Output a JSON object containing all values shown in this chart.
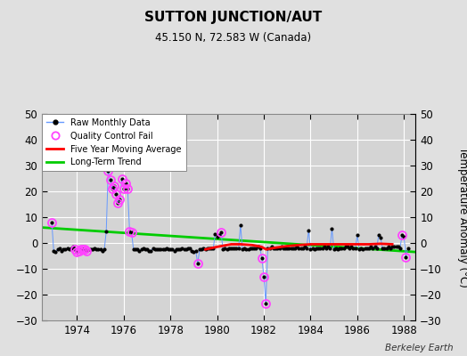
{
  "title": "SUTTON JUNCTION/AUT",
  "subtitle": "45.150 N, 72.583 W (Canada)",
  "ylabel_right": "Temperature Anomaly (°C)",
  "watermark": "Berkeley Earth",
  "xlim": [
    1972.5,
    1988.5
  ],
  "ylim": [
    -30,
    50
  ],
  "yticks": [
    -30,
    -20,
    -10,
    0,
    10,
    20,
    30,
    40,
    50
  ],
  "xticks": [
    1974,
    1976,
    1978,
    1980,
    1982,
    1984,
    1986,
    1988
  ],
  "bg_color": "#e0e0e0",
  "plot_bg_color": "#d4d4d4",
  "grid_color": "#ffffff",
  "raw_color": "#6699ff",
  "qc_color": "#ff44ff",
  "moving_avg_color": "red",
  "trend_color": "#00cc00",
  "raw_monthly_data": [
    [
      1972.917,
      8.0
    ],
    [
      1973.0,
      -3.0
    ],
    [
      1973.083,
      -3.5
    ],
    [
      1973.167,
      -2.5
    ],
    [
      1973.25,
      -2.0
    ],
    [
      1973.333,
      -3.0
    ],
    [
      1973.417,
      -2.5
    ],
    [
      1973.5,
      -2.5
    ],
    [
      1973.583,
      -2.0
    ],
    [
      1973.667,
      -2.5
    ],
    [
      1973.75,
      -2.0
    ],
    [
      1973.833,
      -1.5
    ],
    [
      1973.917,
      -2.5
    ],
    [
      1974.0,
      -3.5
    ],
    [
      1974.083,
      -3.0
    ],
    [
      1974.167,
      -2.5
    ],
    [
      1974.25,
      -2.5
    ],
    [
      1974.333,
      -2.5
    ],
    [
      1974.417,
      -3.0
    ],
    [
      1974.5,
      -2.5
    ],
    [
      1974.583,
      -2.5
    ],
    [
      1974.667,
      -2.5
    ],
    [
      1974.75,
      -2.0
    ],
    [
      1974.833,
      -2.5
    ],
    [
      1974.917,
      -2.5
    ],
    [
      1975.0,
      -2.5
    ],
    [
      1975.083,
      -3.0
    ],
    [
      1975.167,
      -2.5
    ],
    [
      1975.25,
      4.5
    ],
    [
      1975.333,
      28.0
    ],
    [
      1975.417,
      24.5
    ],
    [
      1975.5,
      21.0
    ],
    [
      1975.583,
      22.0
    ],
    [
      1975.667,
      19.0
    ],
    [
      1975.75,
      15.5
    ],
    [
      1975.833,
      17.0
    ],
    [
      1975.917,
      25.0
    ],
    [
      1976.0,
      21.0
    ],
    [
      1976.083,
      23.0
    ],
    [
      1976.167,
      21.0
    ],
    [
      1976.25,
      4.5
    ],
    [
      1976.333,
      4.0
    ],
    [
      1976.417,
      -2.5
    ],
    [
      1976.5,
      -2.5
    ],
    [
      1976.583,
      -2.5
    ],
    [
      1976.667,
      -3.0
    ],
    [
      1976.75,
      -2.5
    ],
    [
      1976.833,
      -2.0
    ],
    [
      1976.917,
      -2.5
    ],
    [
      1977.0,
      -2.5
    ],
    [
      1977.083,
      -3.0
    ],
    [
      1977.167,
      -3.0
    ],
    [
      1977.25,
      -2.0
    ],
    [
      1977.333,
      -2.5
    ],
    [
      1977.417,
      -2.5
    ],
    [
      1977.5,
      -2.5
    ],
    [
      1977.583,
      -2.5
    ],
    [
      1977.667,
      -2.5
    ],
    [
      1977.75,
      -2.5
    ],
    [
      1977.833,
      -2.0
    ],
    [
      1977.917,
      -2.5
    ],
    [
      1978.0,
      -2.5
    ],
    [
      1978.083,
      -2.5
    ],
    [
      1978.167,
      -3.0
    ],
    [
      1978.25,
      -2.5
    ],
    [
      1978.333,
      -2.5
    ],
    [
      1978.417,
      -2.5
    ],
    [
      1978.5,
      -2.0
    ],
    [
      1978.583,
      -2.5
    ],
    [
      1978.667,
      -2.5
    ],
    [
      1978.75,
      -2.0
    ],
    [
      1978.833,
      -2.0
    ],
    [
      1978.917,
      -3.0
    ],
    [
      1979.0,
      -3.5
    ],
    [
      1979.083,
      -3.0
    ],
    [
      1979.167,
      -8.0
    ],
    [
      1979.25,
      -2.5
    ],
    [
      1979.333,
      -2.5
    ],
    [
      1979.417,
      -2.0
    ],
    [
      1979.5,
      -2.5
    ],
    [
      1979.583,
      -2.0
    ],
    [
      1979.667,
      -2.0
    ],
    [
      1979.75,
      -2.0
    ],
    [
      1979.833,
      -2.0
    ],
    [
      1979.917,
      3.5
    ],
    [
      1980.0,
      2.5
    ],
    [
      1980.083,
      3.0
    ],
    [
      1980.167,
      4.0
    ],
    [
      1980.25,
      -2.5
    ],
    [
      1980.333,
      -2.0
    ],
    [
      1980.417,
      -2.5
    ],
    [
      1980.5,
      -2.0
    ],
    [
      1980.583,
      -2.0
    ],
    [
      1980.667,
      -2.0
    ],
    [
      1980.75,
      -2.0
    ],
    [
      1980.833,
      -2.0
    ],
    [
      1980.917,
      -2.0
    ],
    [
      1981.0,
      7.0
    ],
    [
      1981.083,
      -2.5
    ],
    [
      1981.167,
      -2.0
    ],
    [
      1981.25,
      -2.5
    ],
    [
      1981.333,
      -2.5
    ],
    [
      1981.417,
      -2.0
    ],
    [
      1981.5,
      -2.0
    ],
    [
      1981.583,
      -2.0
    ],
    [
      1981.667,
      -2.0
    ],
    [
      1981.75,
      -1.5
    ],
    [
      1981.833,
      -2.0
    ],
    [
      1981.917,
      -6.0
    ],
    [
      1982.0,
      -13.0
    ],
    [
      1982.083,
      -23.5
    ],
    [
      1982.167,
      -2.0
    ],
    [
      1982.25,
      -2.0
    ],
    [
      1982.333,
      -1.5
    ],
    [
      1982.417,
      -2.0
    ],
    [
      1982.5,
      -2.0
    ],
    [
      1982.583,
      -2.0
    ],
    [
      1982.667,
      -2.0
    ],
    [
      1982.75,
      -1.5
    ],
    [
      1982.833,
      -2.0
    ],
    [
      1982.917,
      -2.0
    ],
    [
      1983.0,
      -2.0
    ],
    [
      1983.083,
      -2.0
    ],
    [
      1983.167,
      -2.0
    ],
    [
      1983.25,
      -2.0
    ],
    [
      1983.333,
      -2.0
    ],
    [
      1983.417,
      -1.5
    ],
    [
      1983.5,
      -2.0
    ],
    [
      1983.583,
      -2.0
    ],
    [
      1983.667,
      -2.0
    ],
    [
      1983.75,
      -1.5
    ],
    [
      1983.833,
      -2.0
    ],
    [
      1983.917,
      5.0
    ],
    [
      1984.0,
      -2.5
    ],
    [
      1984.083,
      -2.0
    ],
    [
      1984.167,
      -2.5
    ],
    [
      1984.25,
      -2.0
    ],
    [
      1984.333,
      -2.0
    ],
    [
      1984.417,
      -2.0
    ],
    [
      1984.5,
      -2.0
    ],
    [
      1984.583,
      -1.5
    ],
    [
      1984.667,
      -2.0
    ],
    [
      1984.75,
      -1.5
    ],
    [
      1984.833,
      -2.0
    ],
    [
      1984.917,
      5.5
    ],
    [
      1985.0,
      -2.5
    ],
    [
      1985.083,
      -2.0
    ],
    [
      1985.167,
      -2.5
    ],
    [
      1985.25,
      -2.0
    ],
    [
      1985.333,
      -2.0
    ],
    [
      1985.417,
      -2.0
    ],
    [
      1985.5,
      -1.5
    ],
    [
      1985.583,
      -1.5
    ],
    [
      1985.667,
      -2.0
    ],
    [
      1985.75,
      -1.5
    ],
    [
      1985.833,
      -2.0
    ],
    [
      1985.917,
      -2.0
    ],
    [
      1986.0,
      3.0
    ],
    [
      1986.083,
      -2.5
    ],
    [
      1986.167,
      -2.0
    ],
    [
      1986.25,
      -2.5
    ],
    [
      1986.333,
      -2.0
    ],
    [
      1986.417,
      -2.0
    ],
    [
      1986.5,
      -2.0
    ],
    [
      1986.583,
      -1.5
    ],
    [
      1986.667,
      -2.0
    ],
    [
      1986.75,
      -1.5
    ],
    [
      1986.833,
      -2.0
    ],
    [
      1986.917,
      3.0
    ],
    [
      1987.0,
      2.0
    ],
    [
      1987.083,
      -2.0
    ],
    [
      1987.167,
      -2.0
    ],
    [
      1987.25,
      -2.0
    ],
    [
      1987.333,
      -1.5
    ],
    [
      1987.417,
      -2.0
    ],
    [
      1987.5,
      -1.5
    ],
    [
      1987.583,
      -1.5
    ],
    [
      1987.667,
      -1.5
    ],
    [
      1987.75,
      -1.5
    ],
    [
      1987.833,
      -2.0
    ],
    [
      1987.917,
      3.0
    ],
    [
      1988.0,
      2.5
    ],
    [
      1988.083,
      -5.5
    ],
    [
      1988.167,
      -2.0
    ]
  ],
  "qc_fail_x": [
    1972.917,
    1973.917,
    1974.0,
    1974.083,
    1974.167,
    1974.25,
    1974.333,
    1974.417,
    1975.333,
    1975.417,
    1975.5,
    1975.583,
    1975.667,
    1975.75,
    1975.833,
    1975.917,
    1976.0,
    1976.083,
    1976.167,
    1976.25,
    1976.333,
    1979.167,
    1980.167,
    1981.917,
    1982.0,
    1982.083,
    1987.917,
    1988.083
  ],
  "qc_fail_y": [
    8.0,
    -2.5,
    -3.5,
    -3.0,
    -2.5,
    -2.5,
    -2.5,
    -3.0,
    28.0,
    24.5,
    21.0,
    22.0,
    19.0,
    15.5,
    17.0,
    25.0,
    21.0,
    23.0,
    21.0,
    4.5,
    4.0,
    -8.0,
    4.0,
    -6.0,
    -13.0,
    -23.5,
    3.0,
    -5.5
  ],
  "trend_x": [
    1972.5,
    1988.5
  ],
  "trend_y": [
    6.0,
    -3.5
  ],
  "moving_avg_x": [
    1979.5,
    1980.0,
    1980.3,
    1980.6,
    1981.0,
    1981.5,
    1981.9,
    1982.1,
    1982.5,
    1983.0,
    1983.5,
    1984.0,
    1984.5,
    1985.0,
    1985.5,
    1986.0,
    1986.5,
    1987.0,
    1987.5
  ],
  "moving_avg_y": [
    -2.5,
    -1.5,
    -1.0,
    -0.5,
    -0.5,
    -0.8,
    -1.5,
    -2.5,
    -1.8,
    -1.2,
    -0.8,
    -0.5,
    -0.5,
    -0.5,
    -0.5,
    -0.5,
    -0.5,
    -0.3,
    -0.5
  ]
}
